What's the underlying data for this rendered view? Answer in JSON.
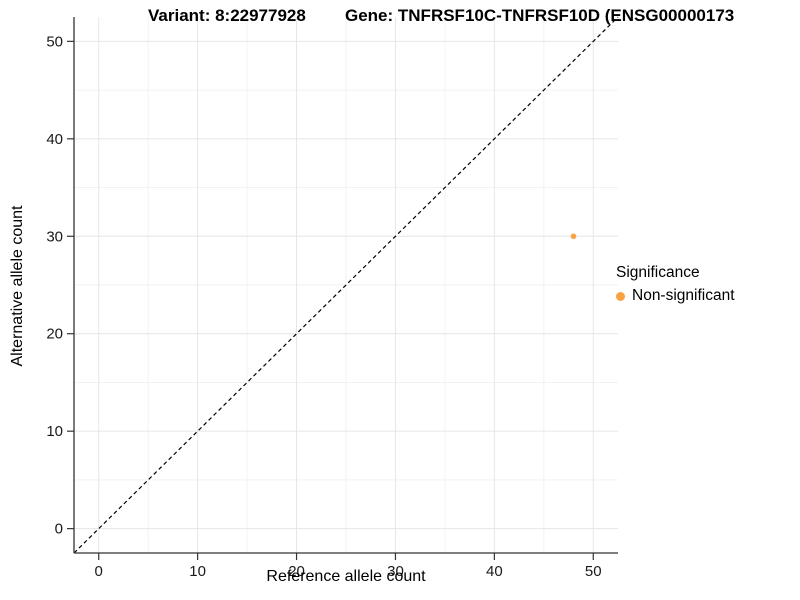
{
  "chart_data": {
    "type": "scatter",
    "title_left": "Variant: 8:22977928",
    "title_right": "Gene: TNFRSF10C-TNFRSF10D (ENSG00000173",
    "xlabel": "Reference allele count",
    "ylabel": "Alternative allele count",
    "xlim": [
      -2.5,
      52.5
    ],
    "ylim": [
      -2.5,
      52.5
    ],
    "x_ticks": [
      0,
      10,
      20,
      30,
      40,
      50
    ],
    "y_ticks": [
      0,
      10,
      20,
      30,
      40,
      50
    ],
    "minor_grid_step": 5,
    "grid": "major+minor",
    "identity_line": {
      "slope": 1,
      "intercept": 0,
      "style": "dashed",
      "color": "#000000"
    },
    "series": [
      {
        "name": "Non-significant",
        "color": "#F9A242",
        "marker": "circle",
        "points": [
          [
            48,
            30
          ]
        ]
      }
    ],
    "legend": {
      "title": "Significance",
      "position": "right",
      "entries": [
        {
          "label": "Non-significant",
          "color": "#F9A242"
        }
      ]
    }
  },
  "colors": {
    "background": "#FFFFFF",
    "grid_major": "#E6E6E6",
    "grid_minor": "#F2F2F2",
    "axis_line": "#333333",
    "tick_text": "#1A1A1A",
    "point": "#F9A242"
  }
}
